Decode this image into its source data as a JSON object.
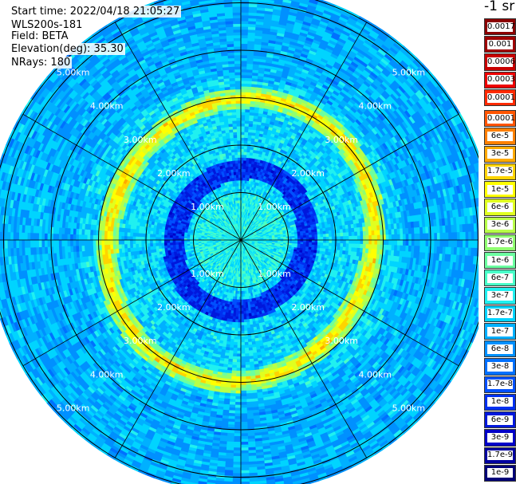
{
  "header": {
    "start_time": "Start time: 2022/04/18 21:05:27",
    "instrument": "WLS200s-181",
    "field": "Field: BETA",
    "elevation": "Elevation(deg): 35.30",
    "nrays": "NRays: 180"
  },
  "chart_data": {
    "type": "heatmap",
    "projection": "polar",
    "title": "",
    "field": "BETA",
    "elevation_deg": 35.3,
    "n_rays": 180,
    "range_max_km": 5.3,
    "range_rings_km": [
      1,
      2,
      3,
      4,
      5
    ],
    "ring_labels": [
      "1.00km",
      "2.00km",
      "3.00km",
      "4.00km",
      "5.00km"
    ],
    "azimuth_spokes_deg": [
      0,
      30,
      60,
      90,
      120,
      150,
      180,
      210,
      240,
      270,
      300,
      330
    ],
    "dominant_features": [
      {
        "name": "inner-low-band",
        "radius_km": 1.45,
        "level": "1.7e-8"
      },
      {
        "name": "aerosol-ring",
        "radius_km": 2.9,
        "level": "1e-5"
      },
      {
        "name": "background",
        "level": "1.7e-7"
      }
    ],
    "colorbar": {
      "units": "-1 sr",
      "levels": [
        {
          "label": "0.0017",
          "color": "#8b0000"
        },
        {
          "label": "0.001",
          "color": "#a00000"
        },
        {
          "label": "0.0006",
          "color": "#c80000"
        },
        {
          "label": "0.0003",
          "color": "#ee0000"
        },
        {
          "label": "0.00017",
          "color": "#ff2a00"
        },
        {
          "label": "0.0001",
          "color": "#ff5500"
        },
        {
          "label": "6e-5",
          "color": "#ff8000"
        },
        {
          "label": "3e-5",
          "color": "#ffaa00"
        },
        {
          "label": "1.7e-5",
          "color": "#ffd400"
        },
        {
          "label": "1e-5",
          "color": "#ffff00"
        },
        {
          "label": "6e-6",
          "color": "#e0ff20"
        },
        {
          "label": "3e-6",
          "color": "#b8ff48"
        },
        {
          "label": "1.7e-6",
          "color": "#90ff70"
        },
        {
          "label": "1e-6",
          "color": "#6cffa0"
        },
        {
          "label": "6e-7",
          "color": "#48ffc8"
        },
        {
          "label": "3e-7",
          "color": "#20f0f0"
        },
        {
          "label": "1.7e-7",
          "color": "#00d4ff"
        },
        {
          "label": "1e-7",
          "color": "#00b0ff"
        },
        {
          "label": "6e-8",
          "color": "#0090ff"
        },
        {
          "label": "3e-8",
          "color": "#0070ff"
        },
        {
          "label": "1.7e-8",
          "color": "#0050ff"
        },
        {
          "label": "1e-8",
          "color": "#0030f0"
        },
        {
          "label": "6e-9",
          "color": "#0018dc"
        },
        {
          "label": "3e-9",
          "color": "#0000c8"
        },
        {
          "label": "1.7e-9",
          "color": "#0000a0"
        },
        {
          "label": "1e-9",
          "color": "#000078"
        }
      ]
    }
  }
}
